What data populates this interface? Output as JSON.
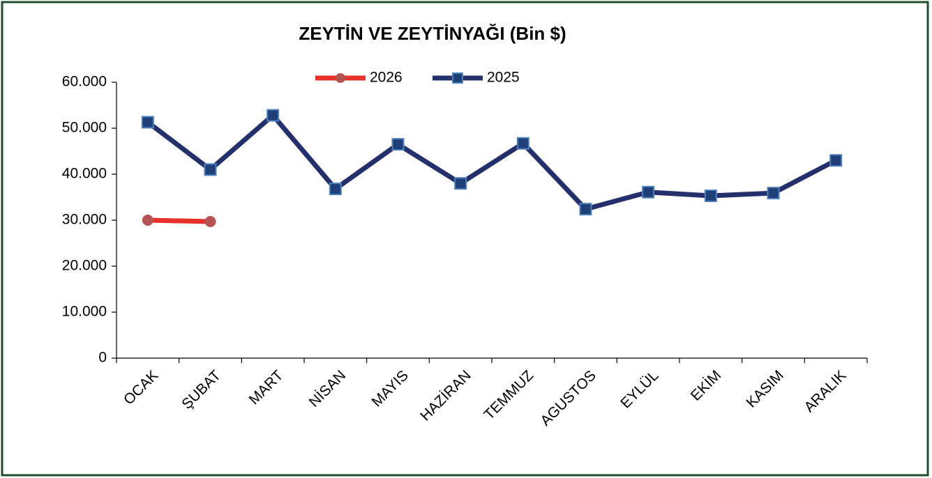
{
  "chart_data": {
    "type": "line",
    "title": "ZEYTİN  VE ZEYTİNYAĞI  (Bin $)",
    "categories": [
      "OCAK",
      "ŞUBAT",
      "MART",
      "NİSAN",
      "MAYIS",
      "HAZİRAN",
      "TEMMUZ",
      "AGUSTOS",
      "EYLÜL",
      "EKİM",
      "KASIM",
      "ARALIK"
    ],
    "series": [
      {
        "name": "2026",
        "color": "#e8312a",
        "marker": "circle",
        "marker_color": "#b55252",
        "values": [
          30000,
          29700,
          null,
          null,
          null,
          null,
          null,
          null,
          null,
          null,
          null,
          null
        ]
      },
      {
        "name": "2025",
        "color": "#24306b",
        "marker": "square",
        "marker_color": "#1f3f78",
        "values": [
          51300,
          41000,
          52800,
          36800,
          46500,
          38000,
          46700,
          32400,
          36100,
          35300,
          35900,
          43000
        ]
      }
    ],
    "ylim": [
      0,
      60000
    ],
    "yticks": [
      0,
      {
        "value": 10000,
        "label": "10.000"
      },
      {
        "value": 20000,
        "label": "20.000"
      },
      {
        "value": 30000,
        "label": "30.000"
      },
      {
        "value": 40000,
        "label": "40.000"
      },
      {
        "value": 50000,
        "label": "50.000"
      },
      {
        "value": 60000,
        "label": "60.000"
      }
    ],
    "grid": false,
    "legend": "top"
  }
}
